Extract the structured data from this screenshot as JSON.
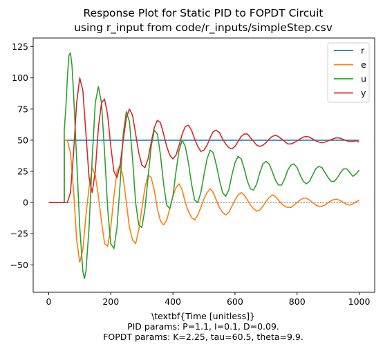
{
  "chart_data": {
    "type": "line",
    "title_line1": "Response Plot for Static PID to FOPDT Circuit",
    "title_line2": "using r_input from code/r_inputs/simpleStep.csv",
    "xlabel": "\\textbf{Time [unitless]}",
    "caption_line1": "PID params: P=1.1, I=0.1, D=0.09.",
    "caption_line2": "FOPDT params: K=2.25, tau=60.5, theta=9.9.",
    "xlim": [
      -50,
      1050
    ],
    "ylim": [
      -72,
      132
    ],
    "xticks": [
      0,
      200,
      400,
      600,
      800,
      1000
    ],
    "yticks": [
      -50,
      -25,
      0,
      25,
      50,
      75,
      100,
      125
    ],
    "zero_line": {
      "style": "dashed",
      "color": "#000000"
    },
    "legend_position": "top-right",
    "series": [
      {
        "name": "r",
        "color": "#1f77b4",
        "points": [
          [
            0,
            0
          ],
          [
            50,
            0
          ],
          [
            50,
            50
          ],
          [
            1000,
            50
          ]
        ]
      },
      {
        "name": "e",
        "color": "#ff7f0e",
        "points": [
          [
            0,
            0
          ],
          [
            50,
            0
          ],
          [
            50,
            50
          ],
          [
            60,
            50
          ],
          [
            70,
            40
          ],
          [
            80,
            10
          ],
          [
            90,
            -30
          ],
          [
            100,
            -48
          ],
          [
            110,
            -38
          ],
          [
            120,
            -10
          ],
          [
            130,
            12
          ],
          [
            140,
            28
          ],
          [
            150,
            22
          ],
          [
            160,
            5
          ],
          [
            170,
            -15
          ],
          [
            180,
            -33
          ],
          [
            190,
            -35
          ],
          [
            200,
            -20
          ],
          [
            210,
            5
          ],
          [
            220,
            25
          ],
          [
            230,
            30
          ],
          [
            240,
            20
          ],
          [
            250,
            0
          ],
          [
            260,
            -20
          ],
          [
            270,
            -30
          ],
          [
            280,
            -33
          ],
          [
            290,
            -22
          ],
          [
            300,
            -5
          ],
          [
            310,
            12
          ],
          [
            320,
            22
          ],
          [
            330,
            20
          ],
          [
            340,
            10
          ],
          [
            350,
            -5
          ],
          [
            360,
            -15
          ],
          [
            370,
            -18
          ],
          [
            380,
            -14
          ],
          [
            390,
            -5
          ],
          [
            400,
            5
          ],
          [
            410,
            12
          ],
          [
            420,
            15
          ],
          [
            430,
            10
          ],
          [
            440,
            0
          ],
          [
            450,
            -7
          ],
          [
            460,
            -12
          ],
          [
            470,
            -14
          ],
          [
            480,
            -10
          ],
          [
            490,
            -4
          ],
          [
            500,
            3
          ],
          [
            510,
            8
          ],
          [
            520,
            11
          ],
          [
            530,
            8
          ],
          [
            540,
            2
          ],
          [
            550,
            -4
          ],
          [
            560,
            -8
          ],
          [
            570,
            -10
          ],
          [
            580,
            -8
          ],
          [
            590,
            -3
          ],
          [
            600,
            2
          ],
          [
            610,
            6
          ],
          [
            620,
            8
          ],
          [
            630,
            6
          ],
          [
            640,
            2
          ],
          [
            650,
            -2
          ],
          [
            660,
            -5
          ],
          [
            670,
            -7
          ],
          [
            680,
            -6
          ],
          [
            690,
            -3
          ],
          [
            700,
            1
          ],
          [
            710,
            4
          ],
          [
            720,
            6
          ],
          [
            730,
            5
          ],
          [
            740,
            2
          ],
          [
            750,
            -1
          ],
          [
            760,
            -3
          ],
          [
            770,
            -4
          ],
          [
            780,
            -4
          ],
          [
            790,
            -2
          ],
          [
            800,
            0
          ],
          [
            810,
            2
          ],
          [
            820,
            3.5
          ],
          [
            830,
            3.5
          ],
          [
            840,
            2
          ],
          [
            850,
            0
          ],
          [
            860,
            -2
          ],
          [
            870,
            -3
          ],
          [
            880,
            -3
          ],
          [
            890,
            -2
          ],
          [
            900,
            0
          ],
          [
            910,
            1.5
          ],
          [
            920,
            2.5
          ],
          [
            930,
            2.5
          ],
          [
            940,
            1.5
          ],
          [
            950,
            0
          ],
          [
            960,
            -1.5
          ],
          [
            970,
            -2
          ],
          [
            980,
            -1
          ],
          [
            990,
            0.5
          ],
          [
            1000,
            2
          ]
        ]
      },
      {
        "name": "u",
        "color": "#2ca02c",
        "points": [
          [
            0,
            0
          ],
          [
            50,
            0
          ],
          [
            50,
            58
          ],
          [
            55,
            75
          ],
          [
            60,
            100
          ],
          [
            65,
            118
          ],
          [
            70,
            120
          ],
          [
            75,
            110
          ],
          [
            80,
            88
          ],
          [
            90,
            35
          ],
          [
            100,
            -20
          ],
          [
            110,
            -55
          ],
          [
            115,
            -61
          ],
          [
            120,
            -55
          ],
          [
            130,
            -20
          ],
          [
            140,
            35
          ],
          [
            150,
            80
          ],
          [
            160,
            93
          ],
          [
            170,
            80
          ],
          [
            180,
            40
          ],
          [
            190,
            -5
          ],
          [
            200,
            -33
          ],
          [
            210,
            -37
          ],
          [
            220,
            -20
          ],
          [
            230,
            15
          ],
          [
            240,
            55
          ],
          [
            250,
            73
          ],
          [
            260,
            65
          ],
          [
            270,
            35
          ],
          [
            280,
            0
          ],
          [
            290,
            -18
          ],
          [
            300,
            -20
          ],
          [
            310,
            -5
          ],
          [
            320,
            20
          ],
          [
            330,
            45
          ],
          [
            340,
            58
          ],
          [
            350,
            55
          ],
          [
            360,
            38
          ],
          [
            370,
            15
          ],
          [
            380,
            -2
          ],
          [
            390,
            -5
          ],
          [
            400,
            5
          ],
          [
            410,
            25
          ],
          [
            420,
            42
          ],
          [
            430,
            50
          ],
          [
            440,
            45
          ],
          [
            450,
            32
          ],
          [
            460,
            15
          ],
          [
            470,
            2
          ],
          [
            480,
            0
          ],
          [
            490,
            8
          ],
          [
            500,
            22
          ],
          [
            510,
            35
          ],
          [
            520,
            42
          ],
          [
            530,
            40
          ],
          [
            540,
            30
          ],
          [
            550,
            18
          ],
          [
            560,
            8
          ],
          [
            570,
            5
          ],
          [
            580,
            10
          ],
          [
            590,
            22
          ],
          [
            600,
            32
          ],
          [
            610,
            37
          ],
          [
            620,
            35
          ],
          [
            630,
            27
          ],
          [
            640,
            17
          ],
          [
            650,
            11
          ],
          [
            660,
            10
          ],
          [
            670,
            15
          ],
          [
            680,
            24
          ],
          [
            690,
            31
          ],
          [
            700,
            33
          ],
          [
            710,
            31
          ],
          [
            720,
            25
          ],
          [
            730,
            18
          ],
          [
            740,
            14
          ],
          [
            750,
            14
          ],
          [
            760,
            19
          ],
          [
            770,
            26
          ],
          [
            780,
            30
          ],
          [
            790,
            31
          ],
          [
            800,
            28
          ],
          [
            810,
            22
          ],
          [
            820,
            17
          ],
          [
            830,
            15
          ],
          [
            840,
            17
          ],
          [
            850,
            22
          ],
          [
            860,
            27
          ],
          [
            870,
            29
          ],
          [
            880,
            28
          ],
          [
            890,
            24
          ],
          [
            900,
            20
          ],
          [
            910,
            17
          ],
          [
            920,
            17
          ],
          [
            930,
            20
          ],
          [
            940,
            24
          ],
          [
            950,
            27
          ],
          [
            960,
            27
          ],
          [
            970,
            24
          ],
          [
            980,
            21
          ],
          [
            990,
            23
          ],
          [
            1000,
            26
          ]
        ]
      },
      {
        "name": "y",
        "color": "#d62728",
        "points": [
          [
            0,
            0
          ],
          [
            60,
            0
          ],
          [
            70,
            8
          ],
          [
            80,
            40
          ],
          [
            90,
            80
          ],
          [
            100,
            100
          ],
          [
            110,
            90
          ],
          [
            120,
            55
          ],
          [
            130,
            20
          ],
          [
            140,
            8
          ],
          [
            150,
            25
          ],
          [
            160,
            60
          ],
          [
            170,
            80
          ],
          [
            180,
            83
          ],
          [
            190,
            70
          ],
          [
            200,
            45
          ],
          [
            210,
            25
          ],
          [
            220,
            20
          ],
          [
            230,
            30
          ],
          [
            240,
            50
          ],
          [
            250,
            68
          ],
          [
            260,
            75
          ],
          [
            270,
            70
          ],
          [
            280,
            55
          ],
          [
            290,
            40
          ],
          [
            300,
            30
          ],
          [
            310,
            28
          ],
          [
            320,
            35
          ],
          [
            330,
            48
          ],
          [
            340,
            60
          ],
          [
            350,
            66
          ],
          [
            360,
            64
          ],
          [
            370,
            55
          ],
          [
            380,
            45
          ],
          [
            390,
            38
          ],
          [
            400,
            35
          ],
          [
            410,
            38
          ],
          [
            420,
            46
          ],
          [
            430,
            55
          ],
          [
            440,
            61
          ],
          [
            450,
            62
          ],
          [
            460,
            58
          ],
          [
            470,
            51
          ],
          [
            480,
            45
          ],
          [
            490,
            41
          ],
          [
            500,
            42
          ],
          [
            510,
            46
          ],
          [
            520,
            52
          ],
          [
            530,
            57
          ],
          [
            540,
            58
          ],
          [
            550,
            56
          ],
          [
            560,
            51
          ],
          [
            570,
            47
          ],
          [
            580,
            44
          ],
          [
            590,
            43
          ],
          [
            600,
            45
          ],
          [
            610,
            49
          ],
          [
            620,
            53
          ],
          [
            630,
            55
          ],
          [
            640,
            55
          ],
          [
            650,
            52
          ],
          [
            660,
            49
          ],
          [
            670,
            46
          ],
          [
            680,
            45
          ],
          [
            690,
            46
          ],
          [
            700,
            48
          ],
          [
            710,
            51
          ],
          [
            720,
            53
          ],
          [
            730,
            54
          ],
          [
            740,
            53
          ],
          [
            750,
            51
          ],
          [
            760,
            49
          ],
          [
            770,
            47
          ],
          [
            780,
            47
          ],
          [
            790,
            48
          ],
          [
            800,
            49.5
          ],
          [
            810,
            51
          ],
          [
            820,
            52.5
          ],
          [
            830,
            53
          ],
          [
            840,
            52.5
          ],
          [
            850,
            51
          ],
          [
            860,
            49.5
          ],
          [
            870,
            48.5
          ],
          [
            880,
            48
          ],
          [
            890,
            48.5
          ],
          [
            900,
            49.5
          ],
          [
            910,
            50.5
          ],
          [
            920,
            51.5
          ],
          [
            930,
            52
          ],
          [
            940,
            51.5
          ],
          [
            950,
            50.5
          ],
          [
            960,
            49.5
          ],
          [
            970,
            49
          ],
          [
            980,
            49
          ],
          [
            990,
            49.5
          ],
          [
            1000,
            48.5
          ]
        ]
      }
    ]
  }
}
